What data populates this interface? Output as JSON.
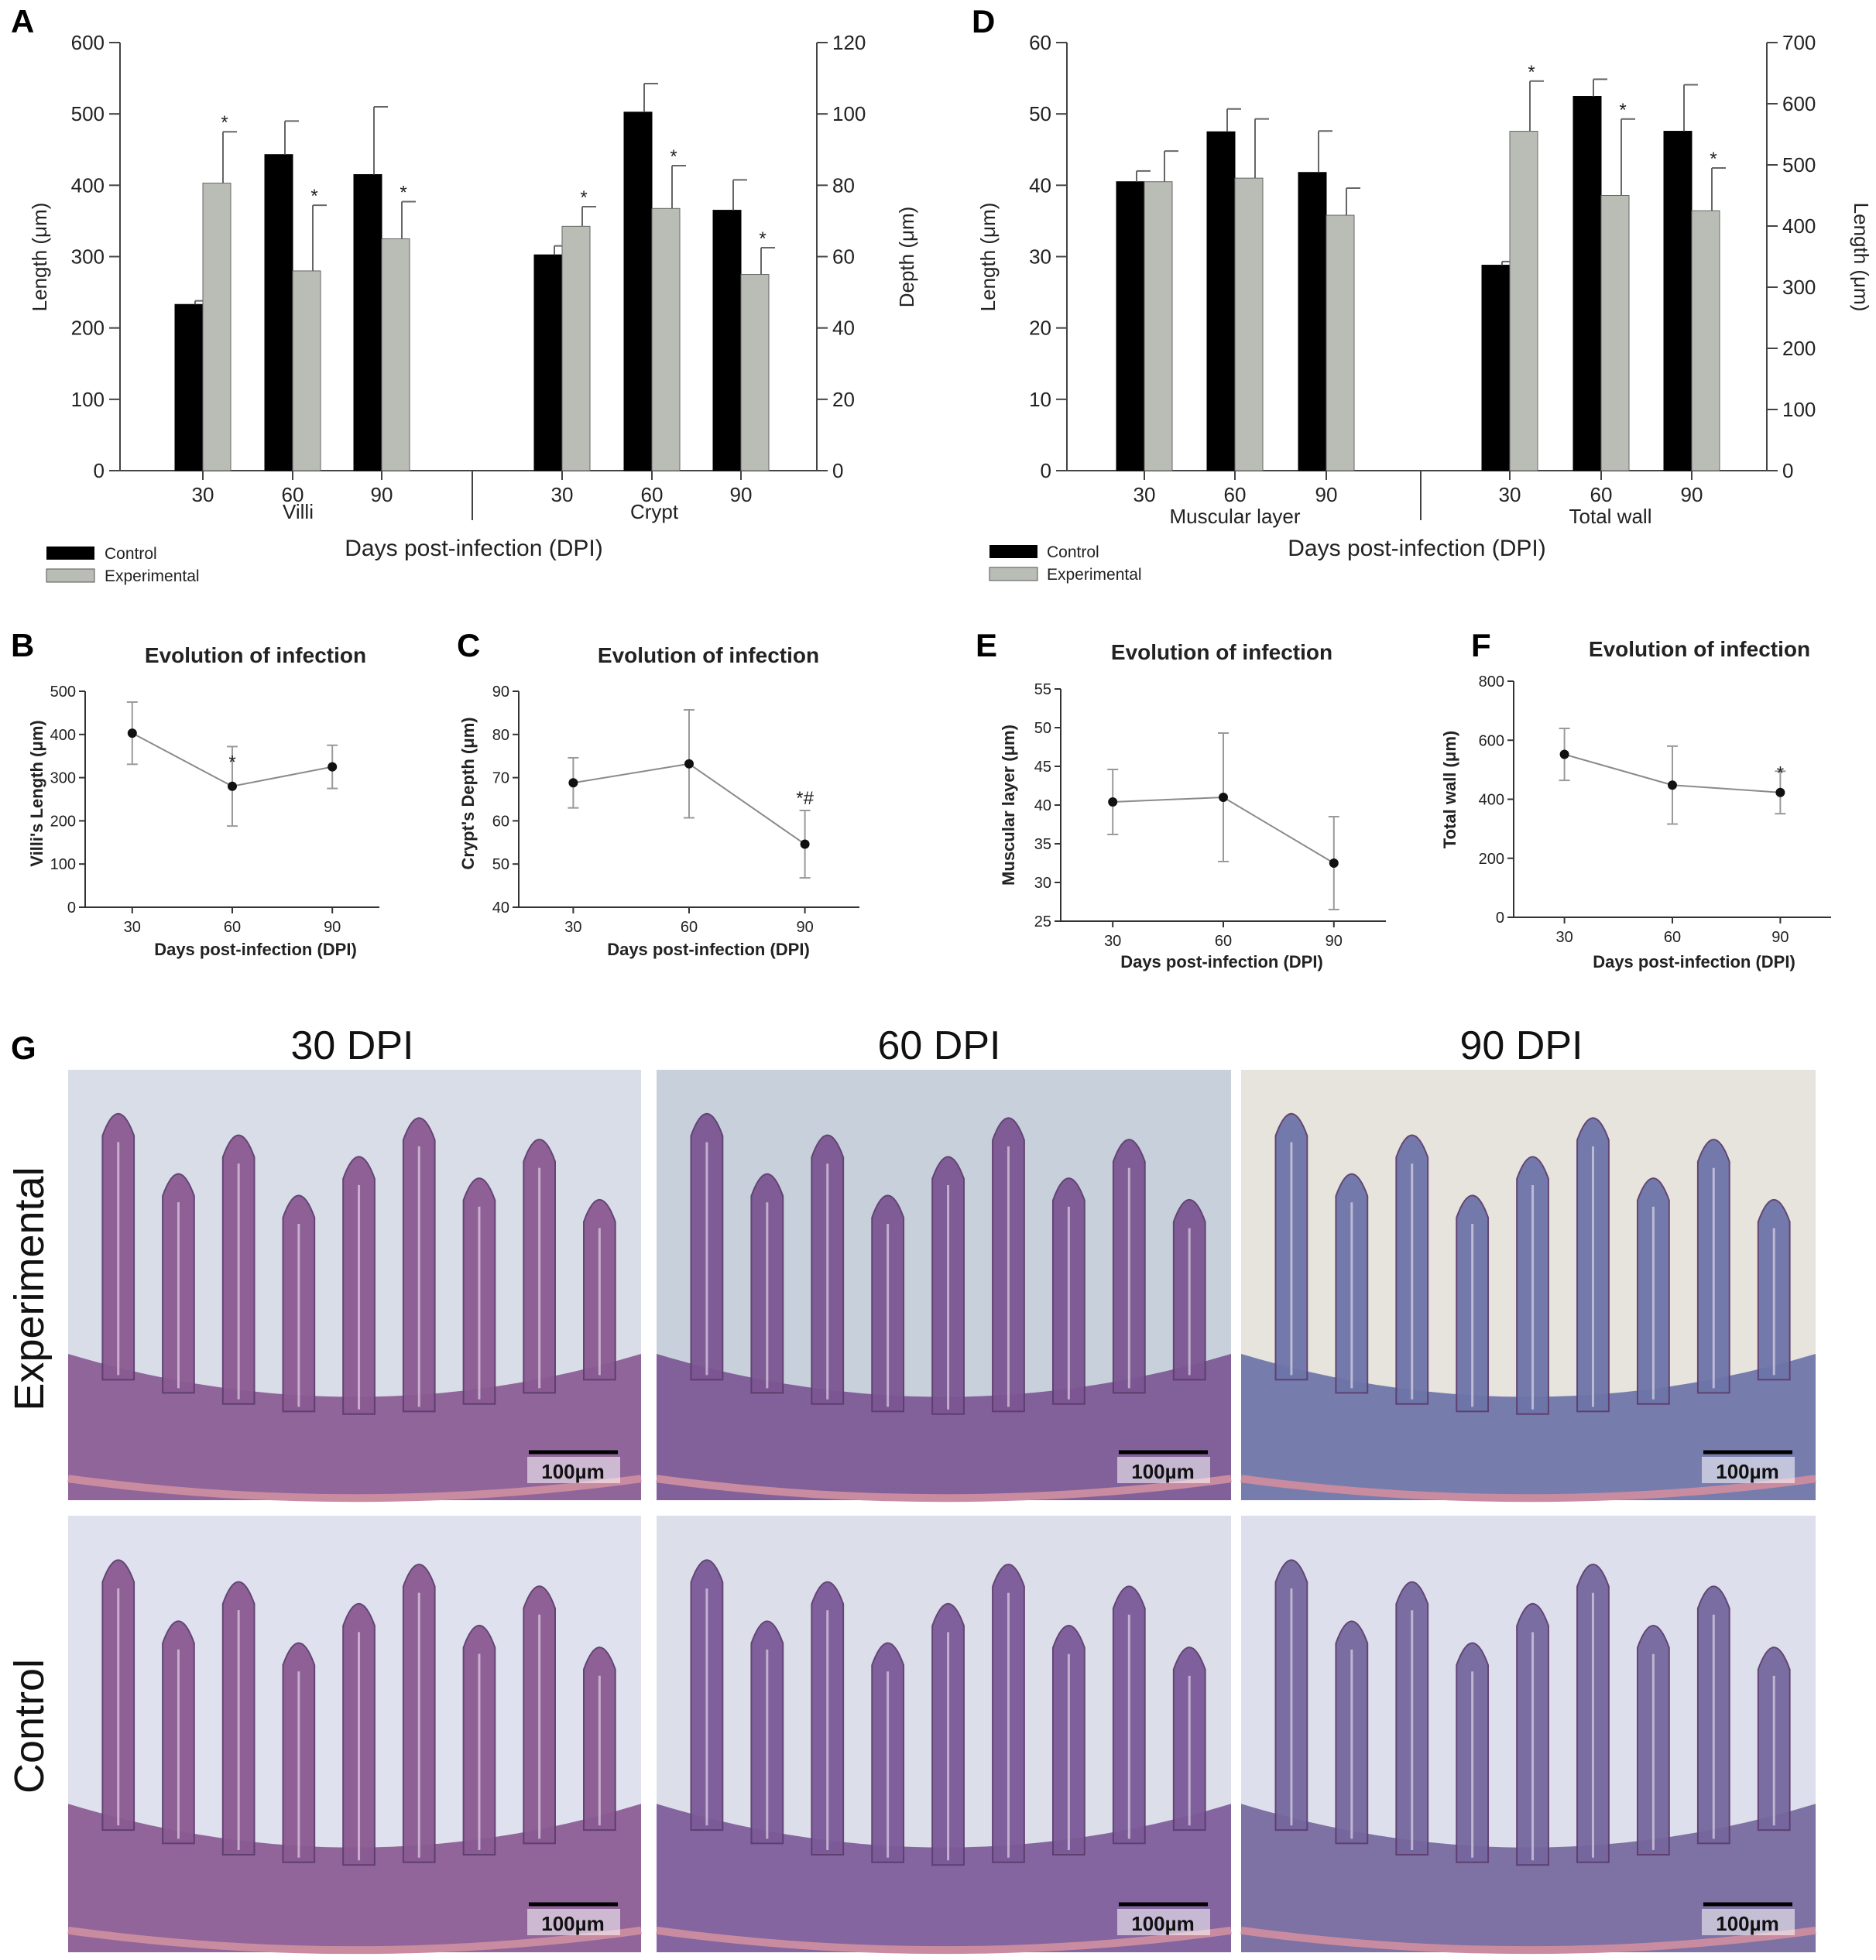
{
  "panel_letters": [
    "A",
    "B",
    "C",
    "D",
    "E",
    "F",
    "G"
  ],
  "legend": {
    "control": "Control",
    "experimental": "Experimental",
    "control_color": "#000000",
    "experimental_color": "#b9bdb5"
  },
  "chart_data": [
    {
      "id": "A",
      "type": "bar",
      "groups": [
        {
          "name": "Villi",
          "categories": [
            "30",
            "60",
            "90"
          ],
          "axis": "left",
          "control": [
            233,
            443,
            415
          ],
          "experimental": [
            403,
            280,
            325
          ],
          "control_err": [
            5,
            47,
            95
          ],
          "experimental_err": [
            72,
            92,
            52
          ],
          "sig": [
            "*",
            "*",
            "*"
          ]
        },
        {
          "name": "Crypt",
          "categories": [
            "30",
            "60",
            "90"
          ],
          "axis": "right",
          "control": [
            60.5,
            100.5,
            73
          ],
          "experimental": [
            68.5,
            73.5,
            55
          ],
          "control_err": [
            2.5,
            8,
            8.5
          ],
          "experimental_err": [
            5.5,
            12,
            7.5
          ],
          "sig": [
            "*",
            "*",
            "*"
          ]
        }
      ],
      "ylabel_left": "Length (μm)",
      "ylabel_right": "Depth (μm)",
      "ylim_left": [
        0,
        600
      ],
      "ylim_right": [
        0,
        120
      ],
      "yticks_left": [
        "0",
        "100",
        "200",
        "300",
        "400",
        "500",
        "600"
      ],
      "yticks_right": [
        "0",
        "20",
        "40",
        "60",
        "80",
        "100",
        "120"
      ],
      "xlabel": "Days post-infection (DPI)",
      "legend_position": "bottom-left"
    },
    {
      "id": "D",
      "type": "bar",
      "groups": [
        {
          "name": "Muscular layer",
          "categories": [
            "30",
            "60",
            "90"
          ],
          "axis": "left",
          "control": [
            40.5,
            47.5,
            41.8
          ],
          "experimental": [
            40.5,
            41,
            35.8
          ],
          "control_err": [
            1.5,
            3.2,
            5.8
          ],
          "experimental_err": [
            4.3,
            8.3,
            3.8
          ],
          "sig": [
            "",
            "",
            ""
          ]
        },
        {
          "name": "Total wall",
          "categories": [
            "30",
            "60",
            "90"
          ],
          "axis": "right",
          "control": [
            336,
            612,
            555
          ],
          "experimental": [
            555,
            450,
            425
          ],
          "control_err": [
            6,
            28,
            76
          ],
          "experimental_err": [
            82,
            125,
            70
          ],
          "sig": [
            "*",
            "*",
            "*"
          ]
        }
      ],
      "ylabel_left": "Length (μm)",
      "ylabel_right": "Length (μm)",
      "ylim_left": [
        0,
        60
      ],
      "ylim_right": [
        0,
        700
      ],
      "yticks_left": [
        "0",
        "10",
        "20",
        "30",
        "40",
        "50",
        "60"
      ],
      "yticks_right": [
        "0",
        "100",
        "200",
        "300",
        "400",
        "500",
        "600",
        "700"
      ],
      "xlabel": "Days post-infection (DPI)",
      "legend_position": "bottom-left"
    },
    {
      "id": "B",
      "type": "line",
      "title": "Evolution of infection",
      "x": [
        "30",
        "60",
        "90"
      ],
      "y": [
        403,
        280,
        325
      ],
      "err": [
        72,
        92,
        50
      ],
      "annotations": [
        "",
        "*",
        ""
      ],
      "ylabel": "Villi's Length (μm)",
      "xlabel": "Days post-infection (DPI)",
      "ylim": [
        0,
        500
      ],
      "yticks": [
        "0",
        "100",
        "200",
        "300",
        "400",
        "500"
      ]
    },
    {
      "id": "C",
      "type": "line",
      "title": "Evolution of infection",
      "x": [
        "30",
        "60",
        "90"
      ],
      "y": [
        68.8,
        73.2,
        54.6
      ],
      "err": [
        5.8,
        12.5,
        7.8
      ],
      "annotations": [
        "",
        "",
        "*#"
      ],
      "ylabel": "Crypt's Depth (μm)",
      "xlabel": "Days post-infection (DPI)",
      "ylim": [
        40,
        90
      ],
      "yticks": [
        "40",
        "50",
        "60",
        "70",
        "80",
        "90"
      ]
    },
    {
      "id": "E",
      "type": "line",
      "title": "Evolution of infection",
      "x": [
        "30",
        "60",
        "90"
      ],
      "y": [
        40.4,
        41,
        32.5
      ],
      "err": [
        4.2,
        8.3,
        6
      ],
      "annotations": [
        "",
        "",
        ""
      ],
      "ylabel": "Muscular layer (μm)",
      "xlabel": "Days post-infection (DPI)",
      "ylim": [
        25,
        55
      ],
      "yticks": [
        "25",
        "30",
        "35",
        "40",
        "45",
        "50",
        "55"
      ]
    },
    {
      "id": "F",
      "type": "line",
      "title": "Evolution of infection",
      "x": [
        "30",
        "60",
        "90"
      ],
      "y": [
        552,
        448,
        423
      ],
      "err": [
        88,
        132,
        72
      ],
      "annotations": [
        "",
        "",
        "*"
      ],
      "ylabel": "Total wall (μm)",
      "xlabel": "Days post-infection (DPI)",
      "ylim": [
        0,
        800
      ],
      "yticks": [
        "0",
        "200",
        "400",
        "600",
        "800"
      ]
    }
  ],
  "micrographs": {
    "columns": [
      "30 DPI",
      "60 DPI",
      "90 DPI"
    ],
    "rows": [
      "Experimental",
      "Control"
    ],
    "scale_bar": "100µm",
    "backgrounds": [
      [
        "#d9dde8",
        "#c8d0dc",
        "#e6e4dc"
      ],
      [
        "#dfe2ee",
        "#dcdfe9",
        "#dde0ec"
      ]
    ],
    "tissue_colors": [
      [
        "#8a5a92",
        "#7c5693",
        "#6d74a8"
      ],
      [
        "#8a5a92",
        "#7c5a98",
        "#75679d"
      ]
    ]
  }
}
